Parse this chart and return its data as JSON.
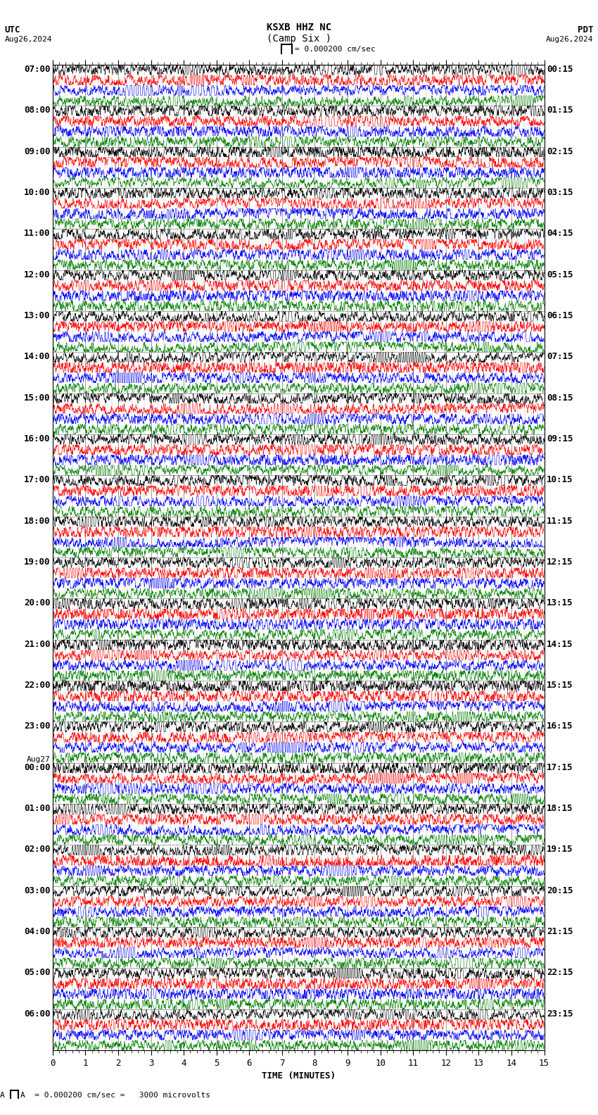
{
  "title_line1": "KSXB HHZ NC",
  "title_line2": "(Camp Six )",
  "scale_text": "= 0.000200 cm/sec",
  "footer_text": "A  = 0.000200 cm/sec =   3000 microvolts",
  "utc_label": "UTC",
  "pdt_label": "PDT",
  "date_left": "Aug26,2024",
  "date_right": "Aug26,2024",
  "xlabel": "TIME (MINUTES)",
  "left_times_utc": [
    "07:00",
    "08:00",
    "09:00",
    "10:00",
    "11:00",
    "12:00",
    "13:00",
    "14:00",
    "15:00",
    "16:00",
    "17:00",
    "18:00",
    "19:00",
    "20:00",
    "21:00",
    "22:00",
    "23:00",
    "Aug27\n00:00",
    "01:00",
    "02:00",
    "03:00",
    "04:00",
    "05:00",
    "06:00"
  ],
  "right_times_pdt": [
    "00:15",
    "01:15",
    "02:15",
    "03:15",
    "04:15",
    "05:15",
    "06:15",
    "07:15",
    "08:15",
    "09:15",
    "10:15",
    "11:15",
    "12:15",
    "13:15",
    "14:15",
    "15:15",
    "16:15",
    "17:15",
    "18:15",
    "19:15",
    "20:15",
    "21:15",
    "22:15",
    "23:15"
  ],
  "trace_colors": [
    "black",
    "red",
    "blue",
    "green"
  ],
  "num_rows": 24,
  "traces_per_row": 4,
  "bg_color": "white",
  "grid_color": "#888888",
  "font_color": "black",
  "font_size": 9,
  "title_font_size": 10,
  "xmin": 0,
  "xmax": 15,
  "minutes_ticks_major": [
    0,
    1,
    2,
    3,
    4,
    5,
    6,
    7,
    8,
    9,
    10,
    11,
    12,
    13,
    14,
    15
  ],
  "minutes_ticks_minor_interval": 0.2
}
